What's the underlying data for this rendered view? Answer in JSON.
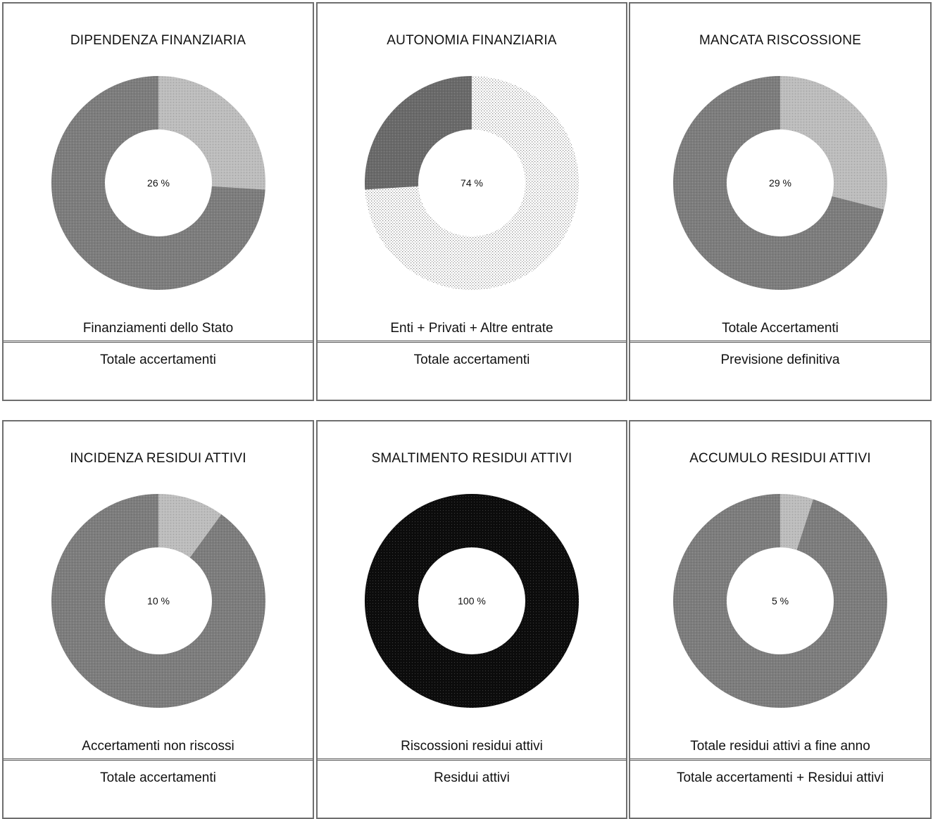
{
  "chart_data": [
    {
      "type": "pie",
      "title": "DIPENDENZA FINANZIARIA",
      "center_label": "26 %",
      "numerator": "Finanziamenti dello Stato",
      "denominator": "Totale accertamenti",
      "values": [
        26,
        74
      ],
      "colors": [
        "#bdbdbd",
        "#7d7d7d"
      ],
      "patterns": [
        "fine",
        "fine"
      ]
    },
    {
      "type": "pie",
      "title": "AUTONOMIA FINANZIARIA",
      "center_label": "74 %",
      "numerator": "Enti + Privati + Altre entrate",
      "denominator": "Totale accertamenti",
      "values": [
        74,
        26
      ],
      "colors": [
        "#d4d4d4",
        "#6a6a6a"
      ],
      "patterns": [
        "dots",
        "fine"
      ]
    },
    {
      "type": "pie",
      "title": "MANCATA RISCOSSIONE",
      "center_label": "29 %",
      "numerator": "Totale Accertamenti",
      "denominator": "Previsione definitiva",
      "values": [
        29,
        71
      ],
      "colors": [
        "#bdbdbd",
        "#7d7d7d"
      ],
      "patterns": [
        "fine",
        "fine"
      ]
    },
    {
      "type": "pie",
      "title": "INCIDENZA RESIDUI ATTIVI",
      "center_label": "10 %",
      "numerator": "Accertamenti non riscossi",
      "denominator": "Totale accertamenti",
      "values": [
        10,
        90
      ],
      "colors": [
        "#bdbdbd",
        "#7d7d7d"
      ],
      "patterns": [
        "fine",
        "fine"
      ]
    },
    {
      "type": "pie",
      "title": "SMALTIMENTO RESIDUI ATTIVI",
      "center_label": "100 %",
      "numerator": "Riscossioni residui attivi",
      "denominator": "Residui attivi",
      "values": [
        100,
        0
      ],
      "colors": [
        "#0c0c0c",
        "#7d7d7d"
      ],
      "patterns": [
        "fine",
        "fine"
      ]
    },
    {
      "type": "pie",
      "title": "ACCUMULO RESIDUI ATTIVI",
      "center_label": "5 %",
      "numerator": "Totale residui attivi a fine anno",
      "denominator": "Totale accertamenti + Residui attivi",
      "values": [
        5,
        95
      ],
      "colors": [
        "#bdbdbd",
        "#7d7d7d"
      ],
      "patterns": [
        "fine",
        "fine"
      ]
    }
  ]
}
